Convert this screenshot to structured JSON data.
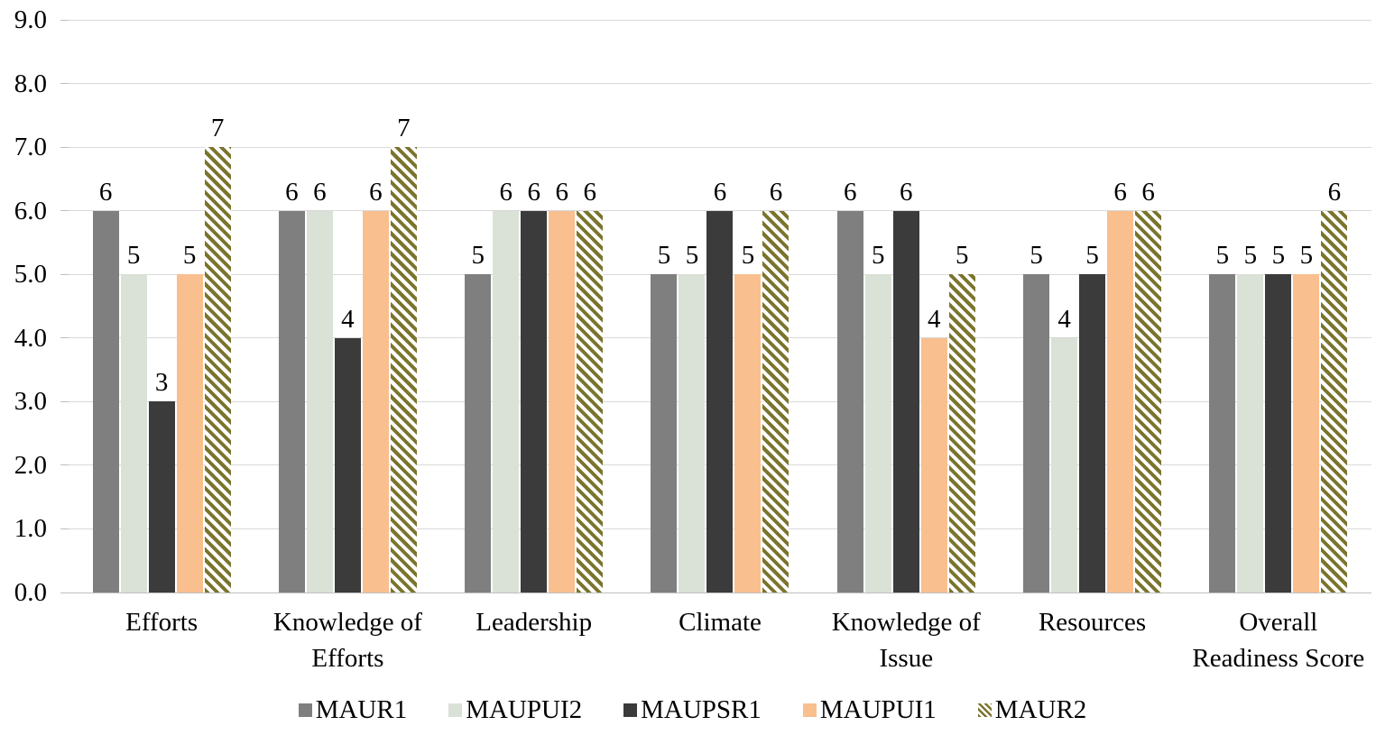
{
  "chart_data": {
    "type": "bar",
    "title": "",
    "xlabel": "",
    "ylabel": "",
    "categories": [
      "Efforts",
      "Knowledge of Efforts",
      "Leadership",
      "Climate",
      "Knowledge of Issue",
      "Resources",
      "Overall Readiness Score"
    ],
    "series": [
      {
        "name": "MAUR1",
        "color": "#7f7f7f",
        "pattern": "solid",
        "values": [
          6,
          6,
          5,
          5,
          6,
          5,
          5
        ]
      },
      {
        "name": "MAUPUI2",
        "color": "#dae1d6",
        "pattern": "solid",
        "values": [
          5,
          6,
          6,
          5,
          5,
          4,
          5
        ]
      },
      {
        "name": "MAUPSR1",
        "color": "#3b3b3b",
        "pattern": "solid",
        "values": [
          3,
          4,
          6,
          6,
          6,
          5,
          5
        ]
      },
      {
        "name": "MAUPUI1",
        "color": "#f9bf8f",
        "pattern": "solid",
        "values": [
          5,
          6,
          6,
          5,
          4,
          6,
          5
        ]
      },
      {
        "name": "MAUR2",
        "color": "#7b742d",
        "pattern": "diagonal-hatch",
        "values": [
          7,
          7,
          6,
          6,
          5,
          6,
          6
        ]
      }
    ],
    "y_axis": {
      "min": 0,
      "max": 9,
      "step": 1,
      "tick_labels": [
        "0.0",
        "1.0",
        "2.0",
        "3.0",
        "4.0",
        "5.0",
        "6.0",
        "7.0",
        "8.0",
        "9.0"
      ]
    },
    "data_labels": true,
    "grid": true,
    "legend_position": "bottom",
    "colors": {
      "gridline": "#d9d9d9",
      "axis_line": "#bfbfbf",
      "text": "#000000",
      "background": "#ffffff"
    }
  }
}
